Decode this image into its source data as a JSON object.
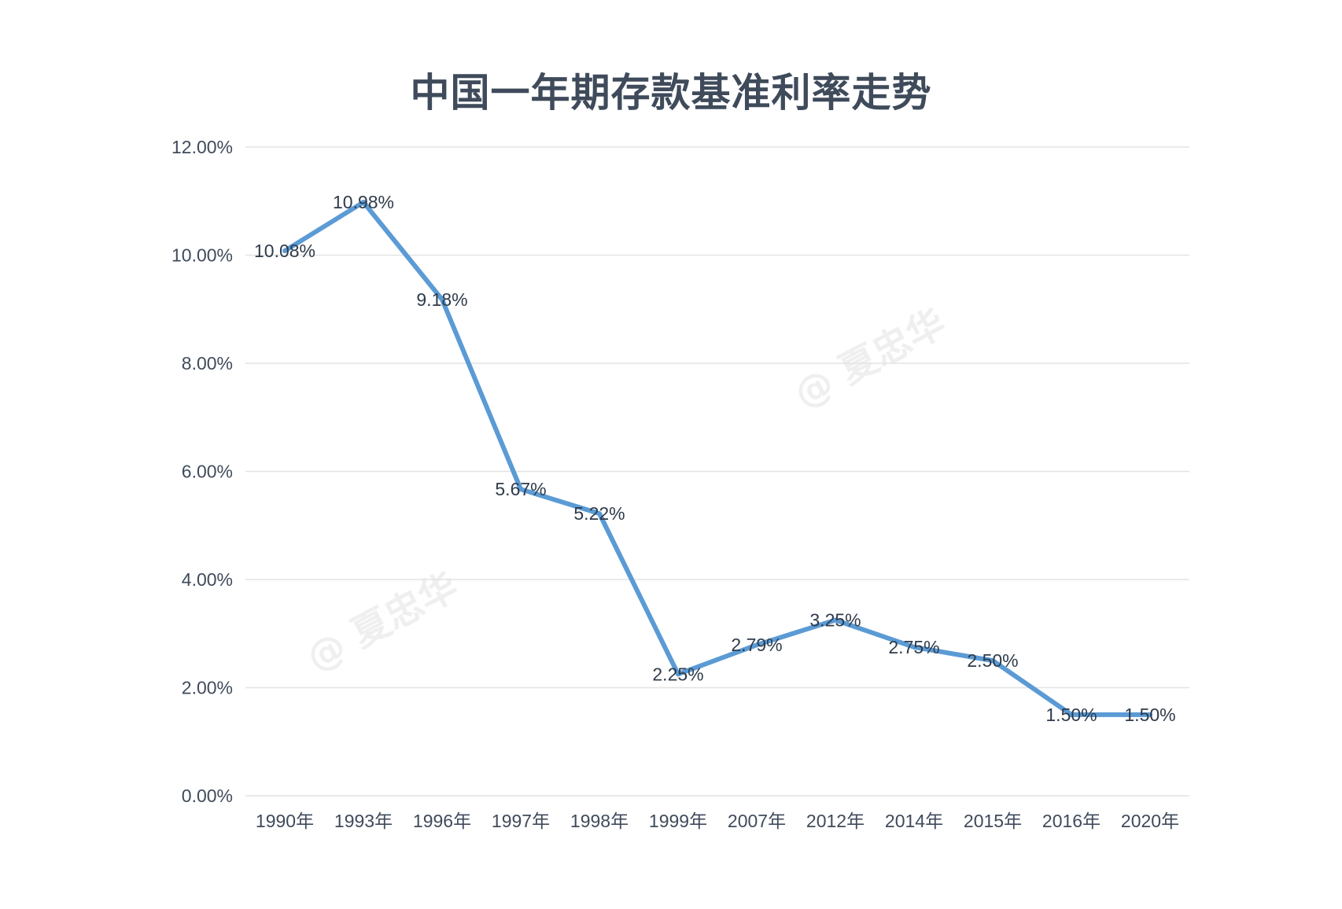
{
  "chart_data": {
    "type": "line",
    "title": "中国一年期存款基准利率走势",
    "categories": [
      "1990年",
      "1993年",
      "1996年",
      "1997年",
      "1998年",
      "1999年",
      "2007年",
      "2012年",
      "2014年",
      "2015年",
      "2016年",
      "2020年"
    ],
    "values": [
      10.08,
      10.98,
      9.18,
      5.67,
      5.22,
      2.25,
      2.79,
      3.25,
      2.75,
      2.5,
      1.5,
      1.5
    ],
    "data_labels": [
      "10.08%",
      "10.98%",
      "9.18%",
      "5.67%",
      "5.22%",
      "2.25%",
      "2.79%",
      "3.25%",
      "2.75%",
      "2.50%",
      "1.50%",
      "1.50%"
    ],
    "y_ticks": [
      "0.00%",
      "2.00%",
      "4.00%",
      "6.00%",
      "8.00%",
      "10.00%",
      "12.00%"
    ],
    "ylim": [
      0,
      12
    ],
    "grid": true,
    "line_color": "#5b9bd5",
    "grid_color": "#e3e3e3"
  },
  "watermark": "@ 夏忠华"
}
